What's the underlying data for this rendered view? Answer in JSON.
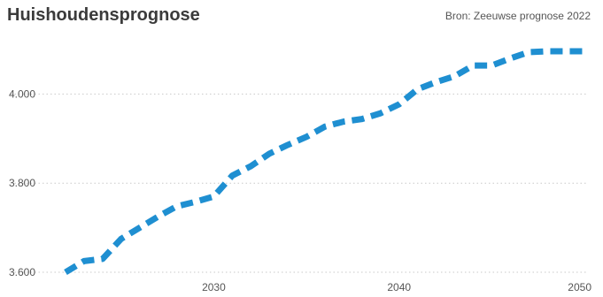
{
  "chart_data": {
    "type": "line",
    "title": "Huishoudensprognose",
    "source": "Bron: Zeeuwse prognose 2022",
    "xlabel": "",
    "ylabel": "",
    "xlim": [
      2022,
      2050
    ],
    "ylim": [
      3600,
      4100
    ],
    "x_ticks": [
      {
        "value": 2030,
        "label": "2030"
      },
      {
        "value": 2040,
        "label": "2040"
      },
      {
        "value": 2050,
        "label": "2050"
      }
    ],
    "y_ticks": [
      {
        "value": 3600,
        "label": "3.600"
      },
      {
        "value": 3800,
        "label": "3.800"
      },
      {
        "value": 4000,
        "label": "4.000"
      }
    ],
    "grid": true,
    "legend": "none",
    "series": [
      {
        "color": "#1f8fd1",
        "x": [
          2022,
          2023,
          2024,
          2025,
          2026,
          2027,
          2028,
          2029,
          2030,
          2031,
          2032,
          2033,
          2034,
          2035,
          2036,
          2037,
          2038,
          2039,
          2040,
          2041,
          2042,
          2043,
          2044,
          2045,
          2046,
          2047,
          2048,
          2049,
          2050
        ],
        "values": [
          3600,
          3625,
          3630,
          3675,
          3700,
          3725,
          3748,
          3758,
          3770,
          3817,
          3838,
          3866,
          3886,
          3904,
          3927,
          3938,
          3944,
          3957,
          3977,
          4011,
          4027,
          4040,
          4064,
          4064,
          4080,
          4094,
          4096,
          4096,
          4096
        ]
      }
    ]
  }
}
